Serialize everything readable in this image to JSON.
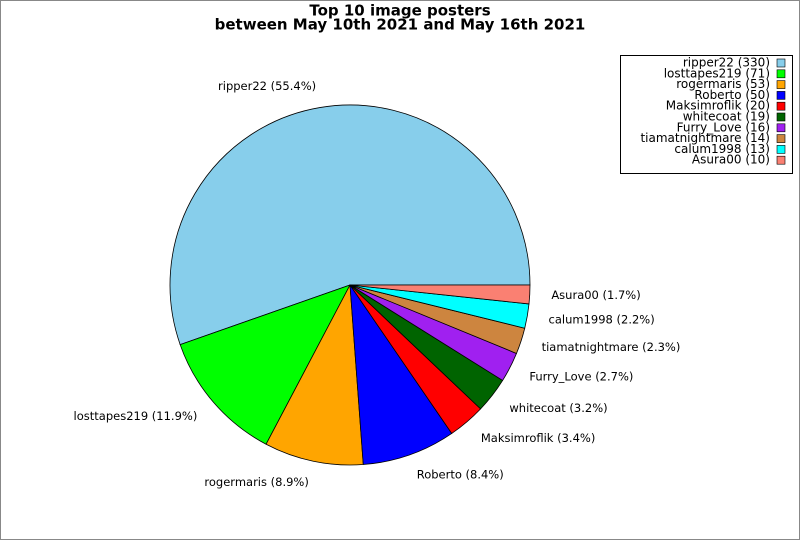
{
  "chart_data": {
    "type": "pie",
    "title": "Top 10 image posters",
    "subtitle": "between May 10th 2021 and May 16th 2021",
    "labels": [
      "ripper22 (330)",
      "losttapes219 (71)",
      "rogermaris (53)",
      "Roberto (50)",
      "Maksimroflik (20)",
      "whitecoat (19)",
      "Furry_Love (16)",
      "tiamatnightmare (14)",
      "calum1998 (13)",
      "Asura00 (10)"
    ],
    "values": [
      330,
      71,
      53,
      50,
      20,
      19,
      16,
      14,
      13,
      10
    ],
    "value_labels": [
      "ripper22 (55.4%)",
      "losttapes219 (11.9%)",
      "rogermaris (8.9%)",
      "Roberto (8.4%)",
      "Maksimroflik (3.4%)",
      "whitecoat (3.2%)",
      "Furry_Love (2.7%)",
      "tiamatnightmare (2.3%)",
      "calum1998 (2.2%)",
      "Asura00 (1.7%)"
    ],
    "colors": [
      "#87ceeb",
      "#00ff00",
      "#ffa500",
      "#0000ff",
      "#ff0000",
      "#006400",
      "#a020f0",
      "#cd853f",
      "#00ffff",
      "#fa8072"
    ],
    "legend": "upper right"
  }
}
